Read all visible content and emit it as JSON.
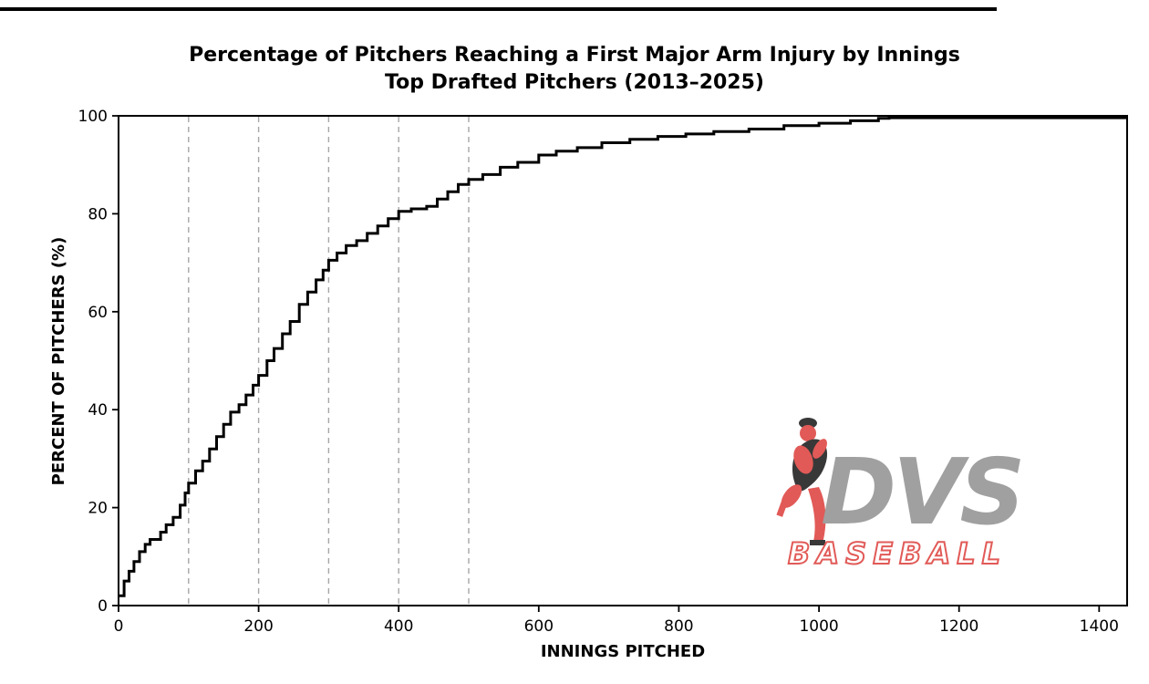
{
  "page": {
    "title_line1": "Percentage of Pitchers Reaching a First Major Arm Injury by Innings",
    "title_line2": "Top Drafted Pitchers (2013–2025)"
  },
  "chart_data": {
    "type": "line",
    "subtype": "cumulative-step-ecdf",
    "title": "Percentage of Pitchers Reaching a First Major Arm Injury by Innings",
    "subtitle": "Top Drafted Pitchers (2013–2025)",
    "xlabel": "INNINGS PITCHED",
    "ylabel": "PERCENT OF PITCHERS (%)",
    "xlim": [
      0,
      1440
    ],
    "ylim": [
      0,
      100
    ],
    "xticks": [
      0,
      200,
      400,
      600,
      800,
      1000,
      1200,
      1400
    ],
    "yticks": [
      0,
      20,
      40,
      60,
      80,
      100
    ],
    "grid_vlines_x": [
      100,
      200,
      300,
      400,
      500
    ],
    "grid_style": "dashed",
    "legend": "none",
    "line_color": "#000000",
    "grid_color": "#a6a6a6",
    "series": [
      {
        "name": "Cumulative percent of pitchers reaching first major arm injury",
        "x": [
          0,
          8,
          15,
          22,
          30,
          38,
          45,
          60,
          68,
          78,
          88,
          95,
          100,
          110,
          120,
          130,
          140,
          150,
          160,
          172,
          182,
          192,
          200,
          212,
          222,
          234,
          245,
          258,
          270,
          282,
          292,
          300,
          312,
          325,
          340,
          355,
          370,
          385,
          400,
          418,
          440,
          455,
          470,
          485,
          500,
          520,
          545,
          570,
          600,
          625,
          655,
          690,
          730,
          770,
          810,
          850,
          900,
          950,
          1000,
          1045,
          1085,
          1100,
          1440
        ],
        "y": [
          2,
          5,
          7,
          9,
          11,
          12.5,
          13.5,
          15,
          16.5,
          18,
          20.5,
          23,
          25,
          27.5,
          29.5,
          32,
          34.5,
          37,
          39.5,
          41,
          43,
          45,
          47,
          50,
          52.5,
          55.5,
          58,
          61.5,
          64,
          66.5,
          68.5,
          70.5,
          72,
          73.5,
          74.5,
          76,
          77.5,
          79,
          80.5,
          81,
          81.5,
          83,
          84.5,
          86,
          87,
          88,
          89.5,
          90.5,
          92,
          92.8,
          93.5,
          94.5,
          95.2,
          95.8,
          96.3,
          96.8,
          97.3,
          98,
          98.5,
          99,
          99.5,
          99.6,
          99.6
        ]
      }
    ]
  },
  "watermark": {
    "brand": "DVS",
    "sub": "BASEBALL",
    "red": "#e0524f",
    "gray": "#9b9b9b",
    "dark": "#2e2e2e",
    "white": "#ffffff"
  }
}
